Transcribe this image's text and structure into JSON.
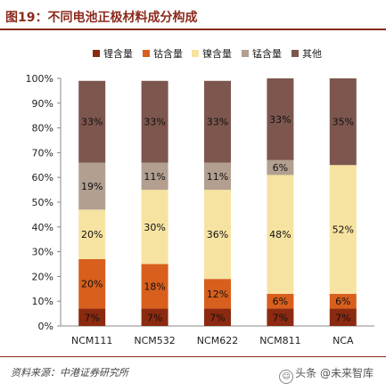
{
  "figure": {
    "title": "图19：不同电池正极材料成分构成",
    "source": "资料来源：中港证券研究所",
    "watermark": "头条 @未来智库",
    "watermark_icon": "smile-icon"
  },
  "chart_data": {
    "type": "bar",
    "stacked": true,
    "percent": true,
    "categories": [
      "NCM111",
      "NCM532",
      "NCM622",
      "NCM811",
      "NCA"
    ],
    "series": [
      {
        "name": "锂含量",
        "color": "#8b2a10",
        "values": [
          7,
          7,
          7,
          7,
          7
        ],
        "labels": [
          "7%",
          "7%",
          "7%",
          "7%",
          "7%"
        ]
      },
      {
        "name": "钴含量",
        "color": "#d85f1d",
        "values": [
          20,
          18,
          12,
          6,
          6
        ],
        "labels": [
          "20%",
          "18%",
          "12%",
          "6%",
          "6%"
        ]
      },
      {
        "name": "镍含量",
        "color": "#f7e3a1",
        "values": [
          20,
          30,
          36,
          48,
          52
        ],
        "labels": [
          "20%",
          "30%",
          "36%",
          "48%",
          "52%"
        ]
      },
      {
        "name": "锰含量",
        "color": "#b29f90",
        "values": [
          19,
          11,
          11,
          6,
          0
        ],
        "labels": [
          "19%",
          "11%",
          "11%",
          "6%",
          ""
        ]
      },
      {
        "name": "其他",
        "color": "#7d564e",
        "values": [
          33,
          33,
          33,
          33,
          35
        ],
        "labels": [
          "33%",
          "33%",
          "33%",
          "33%",
          "35%"
        ]
      }
    ],
    "ylim": [
      0,
      100
    ],
    "yticks": [
      "0%",
      "10%",
      "20%",
      "30%",
      "40%",
      "50%",
      "60%",
      "70%",
      "80%",
      "90%",
      "100%"
    ],
    "legend_position": "top",
    "grid": false
  }
}
